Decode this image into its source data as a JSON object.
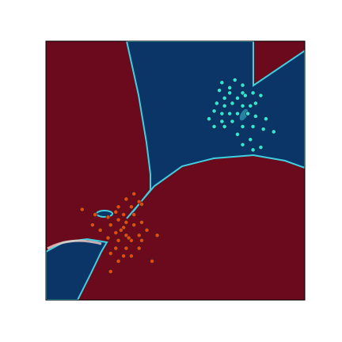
{
  "chart_data": {
    "type": "scatter",
    "xlim": [
      0,
      1
    ],
    "ylim": [
      0,
      1
    ],
    "series": [
      {
        "color": "#2de6e0",
        "x": [
          0.68,
          0.73,
          0.76,
          0.71,
          0.67,
          0.69,
          0.74,
          0.77,
          0.8,
          0.83,
          0.66,
          0.69,
          0.72,
          0.76,
          0.79,
          0.81,
          0.65,
          0.68,
          0.71,
          0.74,
          0.78,
          0.81,
          0.85,
          0.63,
          0.68,
          0.72,
          0.76,
          0.8,
          0.84,
          0.88,
          0.69,
          0.74,
          0.79,
          0.76,
          0.8,
          0.83,
          0.65,
          0.71,
          0.76
        ],
        "y": [
          0.84,
          0.85,
          0.8,
          0.8,
          0.81,
          0.78,
          0.78,
          0.79,
          0.8,
          0.79,
          0.76,
          0.75,
          0.76,
          0.75,
          0.75,
          0.76,
          0.73,
          0.72,
          0.72,
          0.72,
          0.72,
          0.71,
          0.7,
          0.7,
          0.69,
          0.69,
          0.67,
          0.67,
          0.66,
          0.65,
          0.67,
          0.64,
          0.62,
          0.6,
          0.58,
          0.59,
          0.67,
          0.82,
          0.83
        ]
      },
      {
        "color": "#e8480e",
        "x": [
          0.34,
          0.31,
          0.36,
          0.28,
          0.33,
          0.37,
          0.14,
          0.19,
          0.27,
          0.3,
          0.34,
          0.24,
          0.28,
          0.31,
          0.37,
          0.18,
          0.25,
          0.3,
          0.34,
          0.39,
          0.21,
          0.27,
          0.31,
          0.36,
          0.43,
          0.24,
          0.28,
          0.33,
          0.37,
          0.27,
          0.31,
          0.36,
          0.25,
          0.3,
          0.33,
          0.28,
          0.41,
          0.25,
          0.32,
          0.29
        ],
        "y": [
          0.41,
          0.39,
          0.38,
          0.36,
          0.36,
          0.37,
          0.35,
          0.33,
          0.34,
          0.33,
          0.33,
          0.32,
          0.31,
          0.3,
          0.3,
          0.29,
          0.29,
          0.28,
          0.29,
          0.27,
          0.27,
          0.26,
          0.25,
          0.25,
          0.25,
          0.24,
          0.23,
          0.23,
          0.23,
          0.2,
          0.2,
          0.2,
          0.18,
          0.17,
          0.17,
          0.15,
          0.15,
          0.11,
          0.24,
          0.27
        ]
      }
    ]
  }
}
